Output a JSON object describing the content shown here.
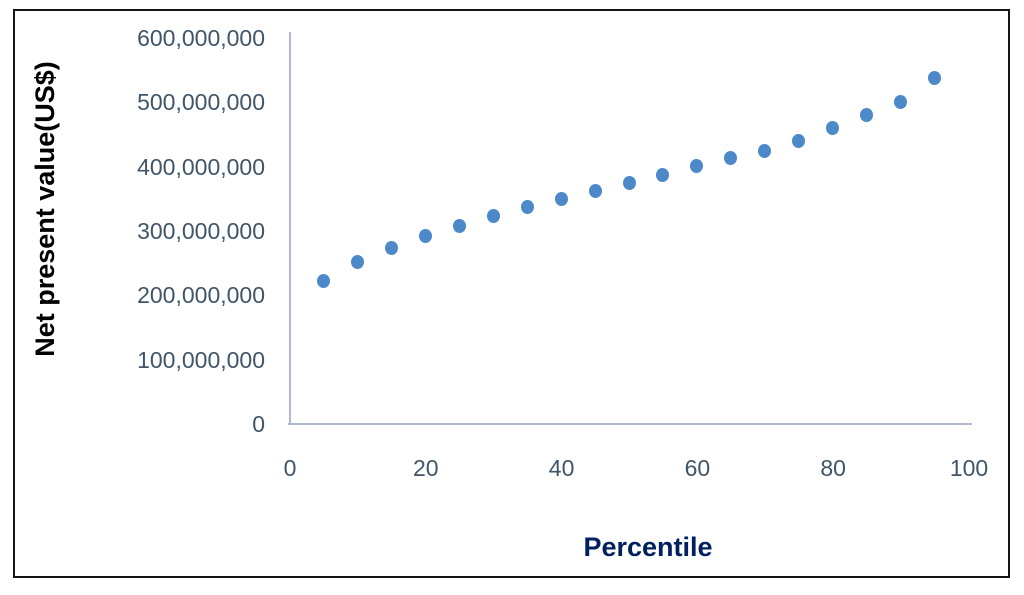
{
  "chart_data": {
    "type": "scatter",
    "title": "",
    "xlabel": "Percentile",
    "ylabel": "Net present value(US$)",
    "xlim": [
      0,
      100
    ],
    "ylim": [
      0,
      600000000
    ],
    "grid": false,
    "legend": false,
    "x_ticks": [
      0,
      20,
      40,
      60,
      80,
      100
    ],
    "x_tick_labels": [
      "0",
      "20",
      "40",
      "60",
      "80",
      "100"
    ],
    "y_ticks": [
      0,
      100000000,
      200000000,
      300000000,
      400000000,
      500000000,
      600000000
    ],
    "y_tick_labels": [
      "0",
      "100,000,000",
      "200,000,000",
      "300,000,000",
      "400,000,000",
      "500,000,000",
      "600,000,000"
    ],
    "x": [
      5,
      10,
      15,
      20,
      25,
      30,
      35,
      40,
      45,
      50,
      55,
      60,
      65,
      70,
      75,
      80,
      85,
      90,
      95
    ],
    "series": [
      {
        "name": "Net present value",
        "values": [
          222000000,
          252000000,
          274000000,
          292000000,
          308000000,
          323000000,
          337000000,
          350000000,
          362000000,
          374000000,
          387000000,
          401000000,
          414000000,
          425000000,
          440000000,
          460000000,
          481000000,
          501000000,
          538000000
        ]
      }
    ],
    "colors": {
      "marker": "#4d89c9",
      "axis_line": "#aebad2",
      "tick_label": "#415569",
      "xlabel_color": "#002060",
      "ylabel_color": "#000000",
      "frame_border": "#141414"
    }
  }
}
